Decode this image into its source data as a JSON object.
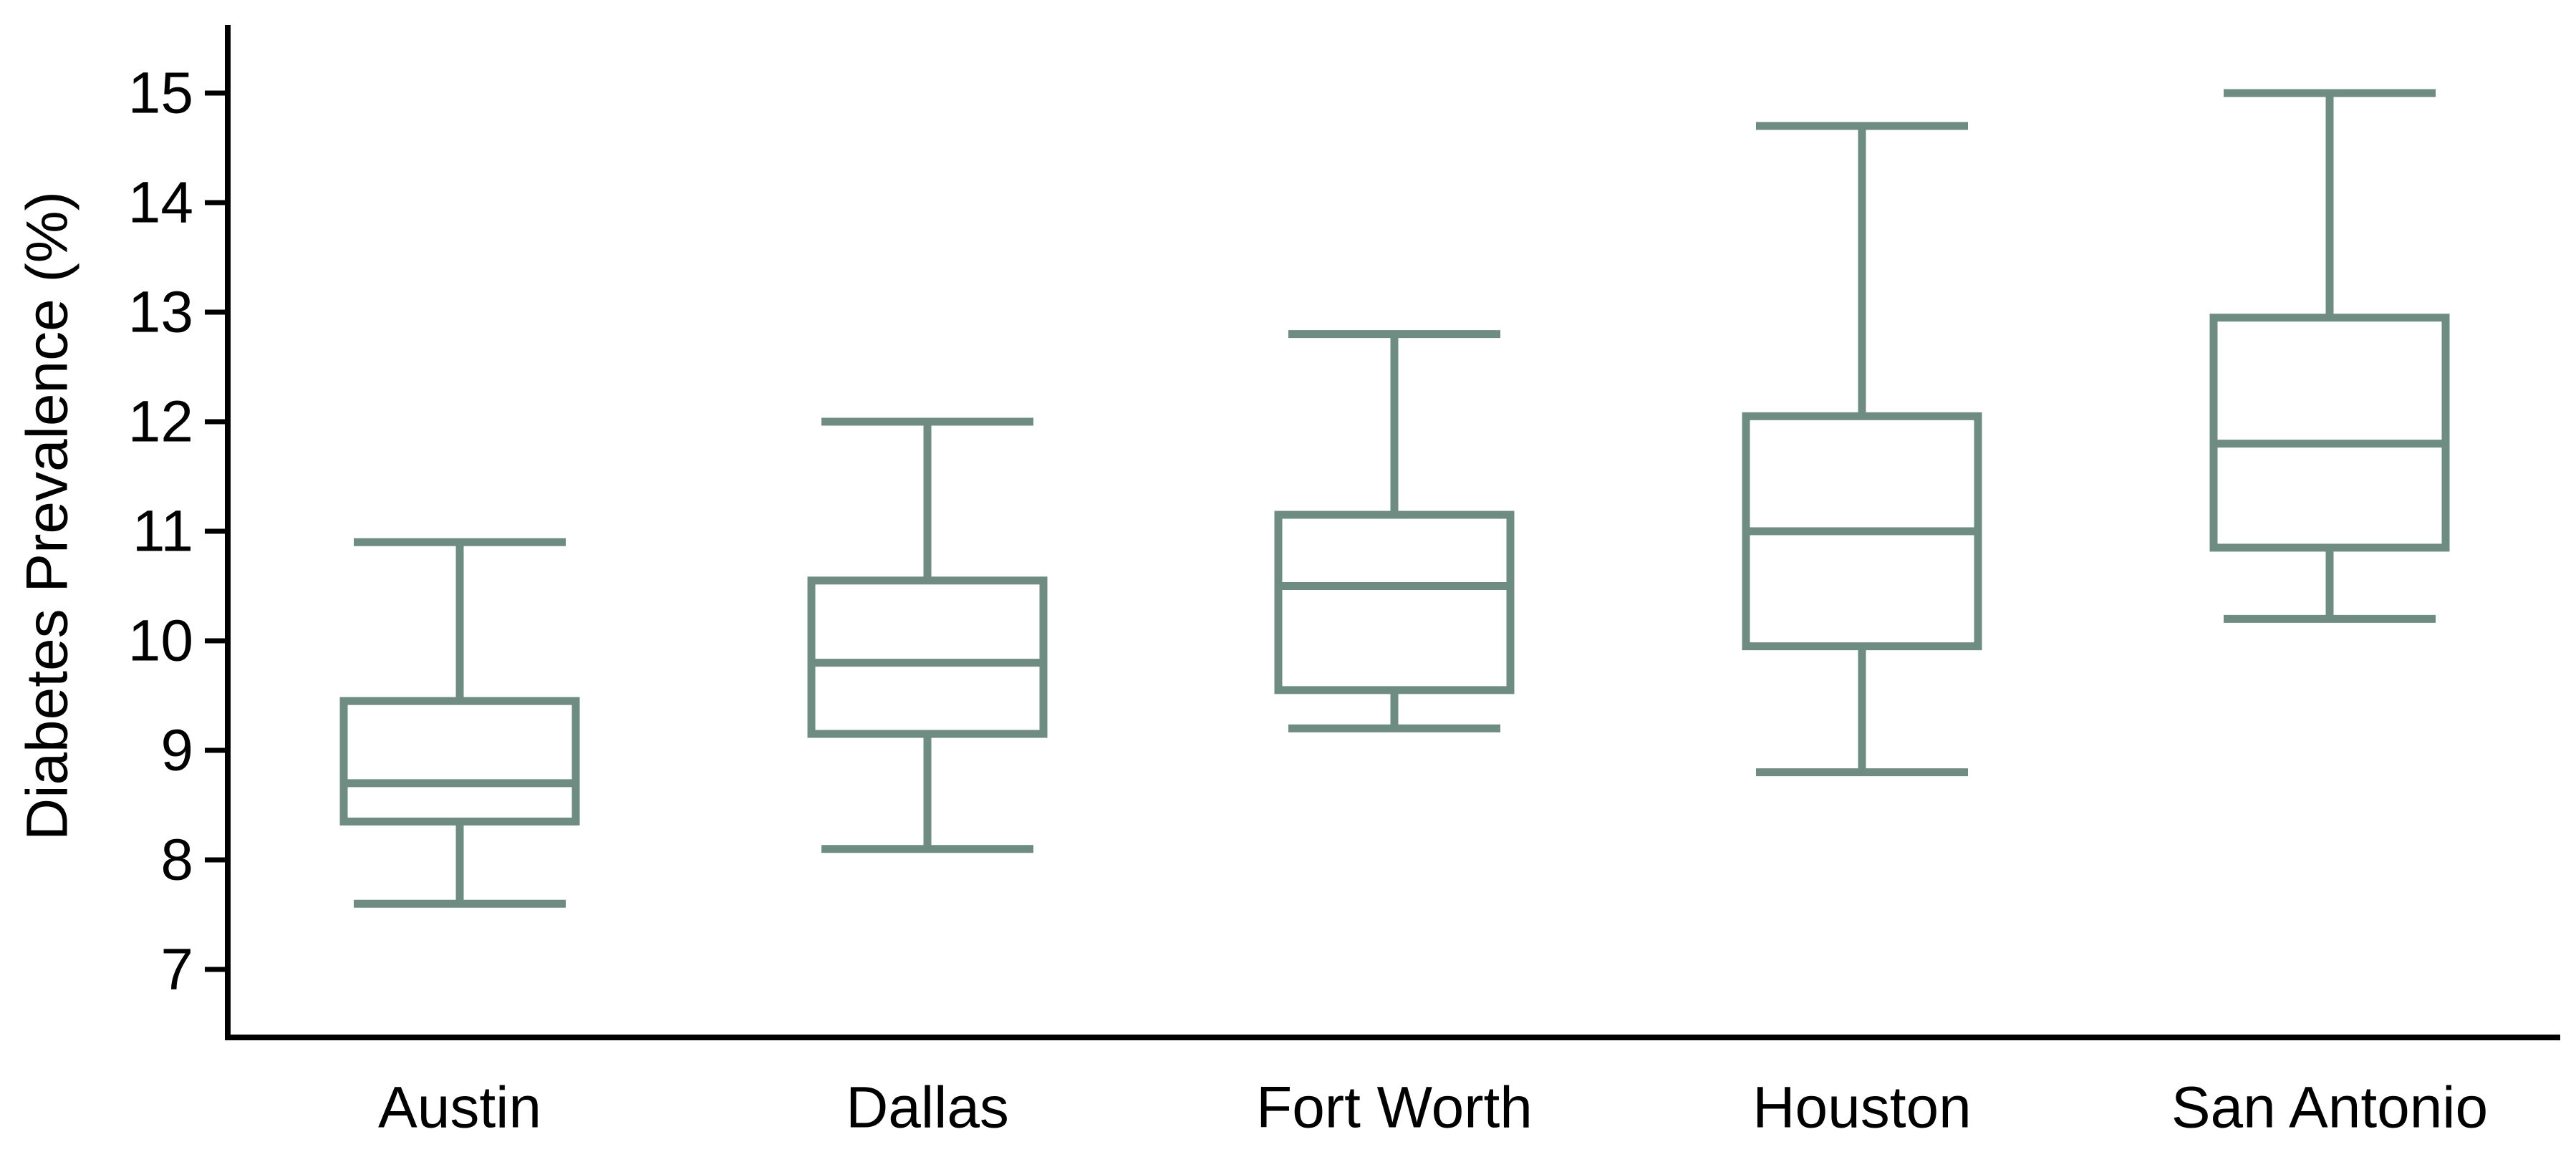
{
  "colors": {
    "box_stroke": "#6e8c82",
    "axis": "#000000",
    "background": "#ffffff"
  },
  "chart_data": {
    "type": "box",
    "title": "",
    "xlabel": "",
    "ylabel": "Diabetes Prevalence (%)",
    "ylim": [
      6.4,
      15.6
    ],
    "yticks": [
      7,
      8,
      9,
      10,
      11,
      12,
      13,
      14,
      15
    ],
    "ytick_labels": [
      "7",
      "8",
      "9",
      "10",
      "11",
      "12",
      "13",
      "14",
      "15"
    ],
    "grid": false,
    "legend": "none",
    "categories": [
      "Austin",
      "Dallas",
      "Fort Worth",
      "Houston",
      "San Antonio"
    ],
    "boxes": [
      {
        "category": "Austin",
        "whisker_low": 7.6,
        "q1": 8.35,
        "median": 8.7,
        "q3": 9.45,
        "whisker_high": 10.9
      },
      {
        "category": "Dallas",
        "whisker_low": 8.1,
        "q1": 9.15,
        "median": 9.8,
        "q3": 10.55,
        "whisker_high": 12.0
      },
      {
        "category": "Fort Worth",
        "whisker_low": 9.2,
        "q1": 9.55,
        "median": 10.5,
        "q3": 11.15,
        "whisker_high": 12.8
      },
      {
        "category": "Houston",
        "whisker_low": 8.8,
        "q1": 9.95,
        "median": 11.0,
        "q3": 12.05,
        "whisker_high": 14.7
      },
      {
        "category": "San Antonio",
        "whisker_low": 10.2,
        "q1": 10.85,
        "median": 11.8,
        "q3": 12.95,
        "whisker_high": 15.0
      }
    ]
  }
}
